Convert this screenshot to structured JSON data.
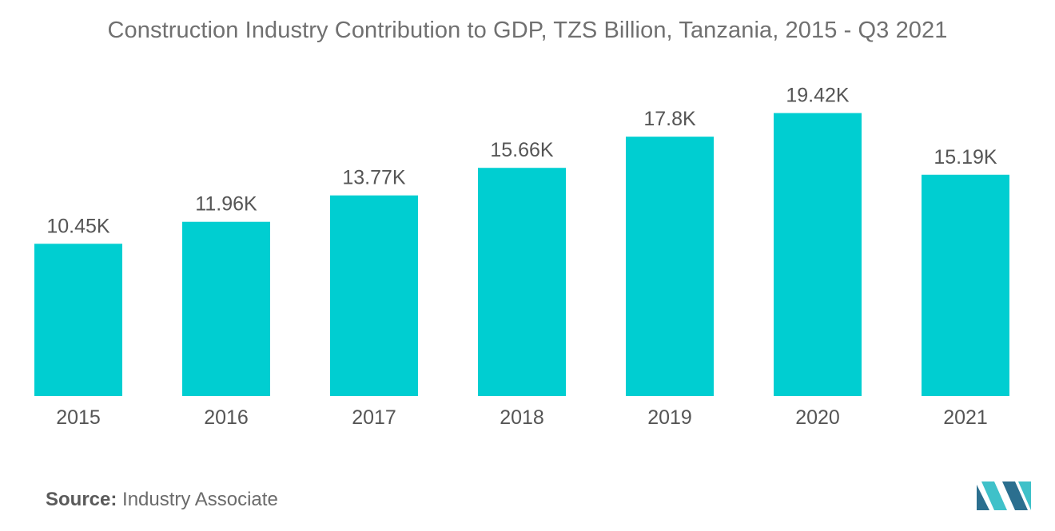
{
  "title": "Construction Industry Contribution to GDP, TZS Billion, Tanzania, 2015 - Q3 2021",
  "source": {
    "label": "Source:",
    "text": "Industry Associate"
  },
  "logo_icon": "mordor-intelligence-logo-icon",
  "colors": {
    "bar": "#00CED1",
    "text": "#666666",
    "logo_dark": "#2b6f8f",
    "logo_light": "#3fc1c9"
  },
  "chart_data": {
    "type": "bar",
    "categories": [
      "2015",
      "2016",
      "2017",
      "2018",
      "2019",
      "2020",
      "2021"
    ],
    "values": [
      10.45,
      11.96,
      13.77,
      15.66,
      17.8,
      19.42,
      15.19
    ],
    "data_labels": [
      "10.45K",
      "11.96K",
      "13.77K",
      "15.66K",
      "17.8K",
      "19.42K",
      "15.19K"
    ],
    "title": "Construction Industry Contribution to GDP, TZS Billion, Tanzania, 2015 - Q3 2021",
    "xlabel": "",
    "ylabel": "",
    "ylim": [
      0,
      21.7
    ],
    "grid": false,
    "legend": "none"
  }
}
